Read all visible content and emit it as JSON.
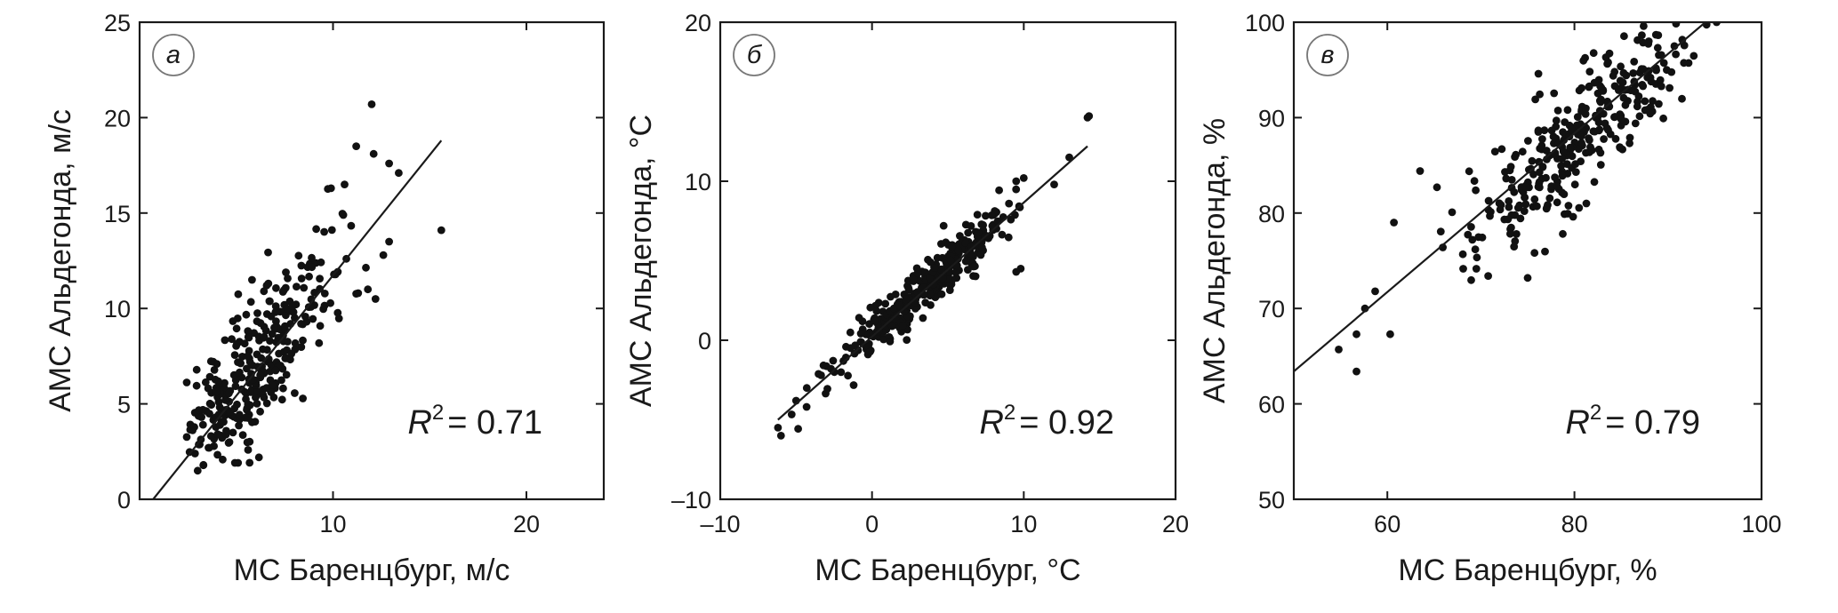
{
  "chart_data": [
    {
      "type": "scatter",
      "panel_label": "а",
      "xlabel": "МС Баренцбург, м/с",
      "ylabel": "АМС Альдегонда, м/с",
      "xlim": [
        0,
        24
      ],
      "ylim": [
        0,
        25
      ],
      "xticks": [
        {
          "v": 10,
          "label": "10"
        },
        {
          "v": 20,
          "label": "20"
        }
      ],
      "yticks": [
        {
          "v": 0,
          "label": "0"
        },
        {
          "v": 5,
          "label": "5"
        },
        {
          "v": 10,
          "label": "10"
        },
        {
          "v": 15,
          "label": "15"
        },
        {
          "v": 20,
          "label": "20"
        },
        {
          "v": 25,
          "label": "25"
        }
      ],
      "r2_symbol": "R",
      "r2_exp": "2",
      "r2_text": "= 0.71",
      "fit_line": [
        [
          0.7,
          0
        ],
        [
          15.6,
          18.8
        ]
      ],
      "points_highlight": [
        [
          12.0,
          20.7
        ],
        [
          11.2,
          18.5
        ],
        [
          12.9,
          17.6
        ],
        [
          13.4,
          17.1
        ],
        [
          12.1,
          18.1
        ],
        [
          9.9,
          16.3
        ],
        [
          10.6,
          16.5
        ],
        [
          15.6,
          14.1
        ],
        [
          12.9,
          13.5
        ],
        [
          12.6,
          12.8
        ],
        [
          11.8,
          11.0
        ],
        [
          12.2,
          10.5
        ],
        [
          11.3,
          10.8
        ],
        [
          3.0,
          1.5
        ],
        [
          3.3,
          1.8
        ]
      ],
      "cluster": {
        "n": 310,
        "x_mean": 5.8,
        "x_sd": 2.2,
        "x_min": 2.4,
        "x_max": 12.3,
        "slope": 1.26,
        "intercept": -0.9,
        "noise": 1.75,
        "y_min": 1.5,
        "y_max": 20.0,
        "seed": 11
      }
    },
    {
      "type": "scatter",
      "panel_label": "б",
      "xlabel": "МС Баренцбург, °С",
      "ylabel": "АМС Альдегонда, °С",
      "xlim": [
        -10,
        20
      ],
      "ylim": [
        -10,
        20
      ],
      "xticks": [
        {
          "v": -10,
          "label": "–10"
        },
        {
          "v": 0,
          "label": "0"
        },
        {
          "v": 10,
          "label": "10"
        },
        {
          "v": 20,
          "label": "20"
        }
      ],
      "yticks": [
        {
          "v": -10,
          "label": "–10"
        },
        {
          "v": 0,
          "label": "0"
        },
        {
          "v": 10,
          "label": "10"
        },
        {
          "v": 20,
          "label": "20"
        }
      ],
      "r2_symbol": "R",
      "r2_exp": "2",
      "r2_text": "= 0.92",
      "fit_line": [
        [
          -6.2,
          -5.0
        ],
        [
          14.2,
          12.2
        ]
      ],
      "points_highlight": [
        [
          14.3,
          14.1
        ],
        [
          14.2,
          14.0
        ],
        [
          13.0,
          11.5
        ],
        [
          12.0,
          9.8
        ],
        [
          10.0,
          10.2
        ],
        [
          9.5,
          10.0
        ],
        [
          9.8,
          4.5
        ],
        [
          9.5,
          4.3
        ],
        [
          -6.0,
          -6.0
        ],
        [
          -6.2,
          -5.5
        ],
        [
          -4.3,
          -3.0
        ],
        [
          -5.0,
          -3.8
        ]
      ],
      "cluster": {
        "n": 330,
        "x_mean": 3.6,
        "x_sd": 3.1,
        "x_min": -5.8,
        "x_max": 9.9,
        "slope": 0.86,
        "intercept": 0.25,
        "noise": 0.85,
        "y_min": -6.5,
        "y_max": 11.0,
        "seed": 23
      }
    },
    {
      "type": "scatter",
      "panel_label": "в",
      "xlabel": "МС Баренцбург, %",
      "ylabel": "АМС Альдегонда, %",
      "xlim": [
        50,
        100
      ],
      "ylim": [
        50,
        100
      ],
      "xticks": [
        {
          "v": 60,
          "label": "60"
        },
        {
          "v": 80,
          "label": "80"
        },
        {
          "v": 100,
          "label": "100"
        }
      ],
      "yticks": [
        {
          "v": 50,
          "label": "50"
        },
        {
          "v": 60,
          "label": "60"
        },
        {
          "v": 70,
          "label": "70"
        },
        {
          "v": 80,
          "label": "80"
        },
        {
          "v": 90,
          "label": "90"
        },
        {
          "v": 100,
          "label": "100"
        }
      ],
      "r2_symbol": "R",
      "r2_exp": "2",
      "r2_text": "= 0.79",
      "fit_line": [
        [
          50.0,
          63.4
        ],
        [
          94.0,
          100.0
        ]
      ],
      "points_highlight": [
        [
          54.8,
          65.7
        ],
        [
          56.7,
          67.3
        ],
        [
          57.6,
          70.0
        ],
        [
          58.7,
          71.8
        ],
        [
          56.7,
          63.4
        ],
        [
          60.3,
          67.3
        ],
        [
          60.7,
          79.0
        ],
        [
          63.5,
          84.4
        ],
        [
          65.3,
          82.7
        ],
        [
          75.0,
          73.2
        ],
        [
          95.2,
          100.0
        ],
        [
          90.3,
          100.5
        ]
      ],
      "cluster": {
        "n": 320,
        "x_mean": 81.0,
        "x_sd": 6.2,
        "x_min": 64.5,
        "x_max": 95.0,
        "slope": 0.86,
        "intercept": 19.0,
        "noise": 3.3,
        "y_min": 70.0,
        "y_max": 100.0,
        "seed": 37
      }
    }
  ]
}
